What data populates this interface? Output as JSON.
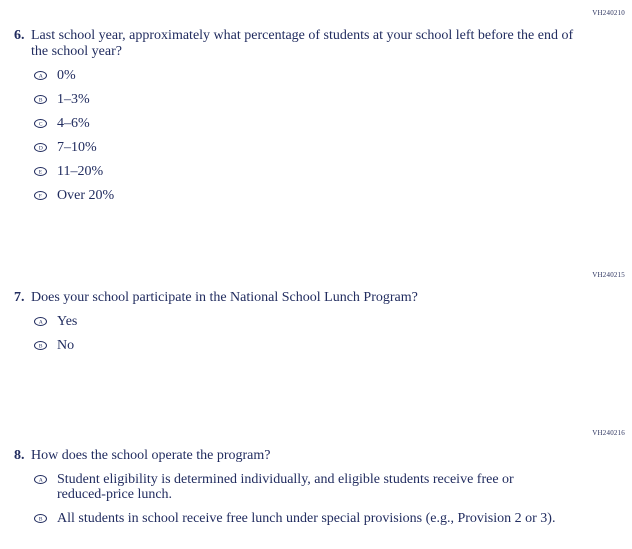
{
  "questions": [
    {
      "code": "VH240210",
      "number": "6.",
      "text": "Last school year, approximately what percentage of students at your school left before the end of the school year?",
      "options": [
        {
          "letter": "A",
          "label": "0%"
        },
        {
          "letter": "B",
          "label": "1–3%"
        },
        {
          "letter": "C",
          "label": "4–6%"
        },
        {
          "letter": "D",
          "label": "7–10%"
        },
        {
          "letter": "E",
          "label": "11–20%"
        },
        {
          "letter": "F",
          "label": "Over 20%"
        }
      ]
    },
    {
      "code": "VH240215",
      "number": "7.",
      "text": "Does your school participate in the National School Lunch Program?",
      "options": [
        {
          "letter": "A",
          "label": "Yes"
        },
        {
          "letter": "B",
          "label": "No"
        }
      ]
    },
    {
      "code": "VH240216",
      "number": "8.",
      "text": "How does the school operate the program?",
      "options": [
        {
          "letter": "A",
          "label": "Student eligibility is determined individually, and eligible students receive free or reduced-price lunch."
        },
        {
          "letter": "B",
          "label": "All students in school receive free lunch under special provisions (e.g., Provision 2 or 3)."
        }
      ]
    }
  ]
}
